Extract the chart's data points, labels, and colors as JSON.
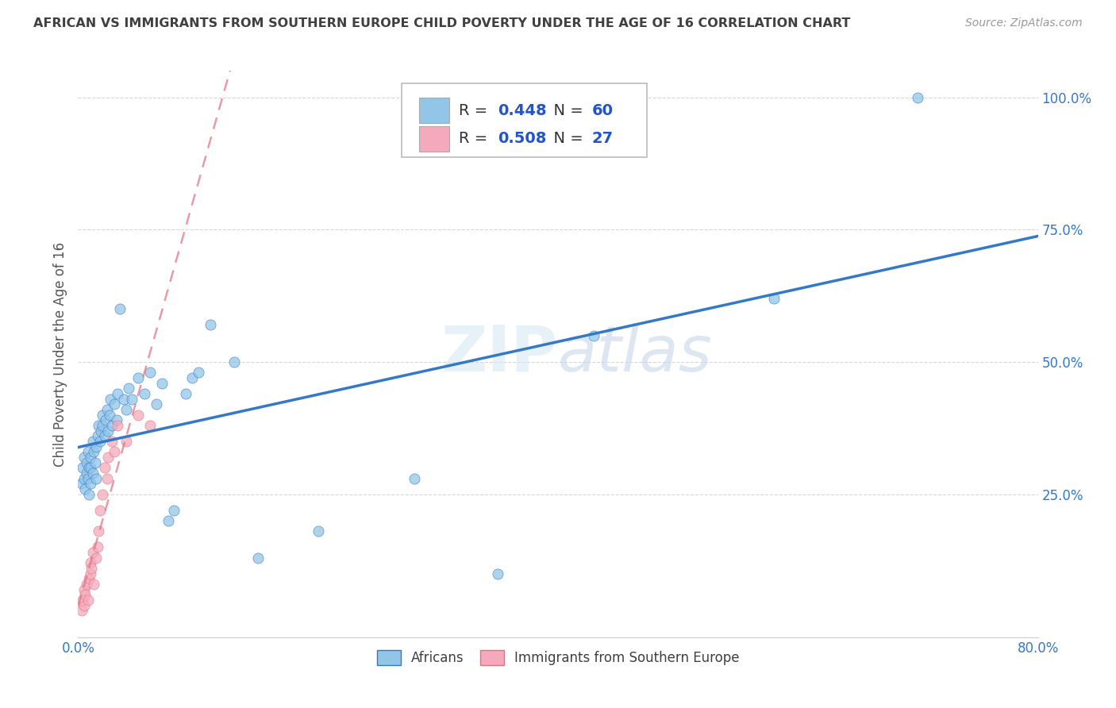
{
  "title": "AFRICAN VS IMMIGRANTS FROM SOUTHERN EUROPE CHILD POVERTY UNDER THE AGE OF 16 CORRELATION CHART",
  "source": "Source: ZipAtlas.com",
  "ylabel": "Child Poverty Under the Age of 16",
  "xlim": [
    0.0,
    0.8
  ],
  "ylim": [
    -0.02,
    1.05
  ],
  "ytick_vals": [
    0.25,
    0.5,
    0.75,
    1.0
  ],
  "ytick_labels": [
    "25.0%",
    "50.0%",
    "75.0%",
    "100.0%"
  ],
  "xtick_vals": [
    0.0,
    0.1,
    0.2,
    0.3,
    0.4,
    0.5,
    0.6,
    0.7,
    0.8
  ],
  "xtick_labels": [
    "0.0%",
    "",
    "",
    "",
    "",
    "",
    "",
    "",
    "80.0%"
  ],
  "legend_bottom_label1": "Africans",
  "legend_bottom_label2": "Immigrants from Southern Europe",
  "R1": 0.448,
  "N1": 60,
  "R2": 0.508,
  "N2": 27,
  "scatter_color1": "#92C5E8",
  "scatter_color2": "#F4AABC",
  "line_color1": "#3478C8",
  "line_color2": "#E07080",
  "watermark": "ZIPatlas",
  "background_color": "#FFFFFF",
  "grid_color": "#CCCCCC",
  "title_color": "#404040",
  "axis_label_color": "#555555",
  "tick_color": "#3478C8",
  "africans_x": [
    0.003,
    0.004,
    0.005,
    0.005,
    0.006,
    0.007,
    0.007,
    0.008,
    0.008,
    0.009,
    0.009,
    0.01,
    0.01,
    0.01,
    0.012,
    0.012,
    0.013,
    0.014,
    0.015,
    0.015,
    0.016,
    0.017,
    0.018,
    0.019,
    0.02,
    0.02,
    0.022,
    0.023,
    0.024,
    0.025,
    0.026,
    0.027,
    0.028,
    0.03,
    0.032,
    0.033,
    0.035,
    0.038,
    0.04,
    0.042,
    0.045,
    0.05,
    0.055,
    0.06,
    0.065,
    0.07,
    0.075,
    0.08,
    0.09,
    0.095,
    0.1,
    0.11,
    0.13,
    0.15,
    0.2,
    0.28,
    0.35,
    0.43,
    0.58,
    0.7
  ],
  "africans_y": [
    0.27,
    0.3,
    0.28,
    0.32,
    0.26,
    0.29,
    0.31,
    0.28,
    0.33,
    0.3,
    0.25,
    0.27,
    0.3,
    0.32,
    0.29,
    0.35,
    0.33,
    0.31,
    0.28,
    0.34,
    0.36,
    0.38,
    0.35,
    0.37,
    0.38,
    0.4,
    0.36,
    0.39,
    0.41,
    0.37,
    0.4,
    0.43,
    0.38,
    0.42,
    0.39,
    0.44,
    0.6,
    0.43,
    0.41,
    0.45,
    0.43,
    0.47,
    0.44,
    0.48,
    0.42,
    0.46,
    0.2,
    0.22,
    0.44,
    0.47,
    0.48,
    0.57,
    0.5,
    0.13,
    0.18,
    0.28,
    0.1,
    0.55,
    0.62,
    1.0
  ],
  "southern_europe_x": [
    0.003,
    0.004,
    0.005,
    0.005,
    0.006,
    0.007,
    0.008,
    0.009,
    0.01,
    0.01,
    0.011,
    0.012,
    0.013,
    0.015,
    0.016,
    0.017,
    0.018,
    0.02,
    0.022,
    0.024,
    0.025,
    0.028,
    0.03,
    0.033,
    0.04,
    0.05,
    0.06
  ],
  "southern_europe_y": [
    0.03,
    0.05,
    0.07,
    0.04,
    0.06,
    0.08,
    0.05,
    0.09,
    0.1,
    0.12,
    0.11,
    0.14,
    0.08,
    0.13,
    0.15,
    0.18,
    0.22,
    0.25,
    0.3,
    0.28,
    0.32,
    0.35,
    0.33,
    0.38,
    0.35,
    0.4,
    0.38
  ]
}
